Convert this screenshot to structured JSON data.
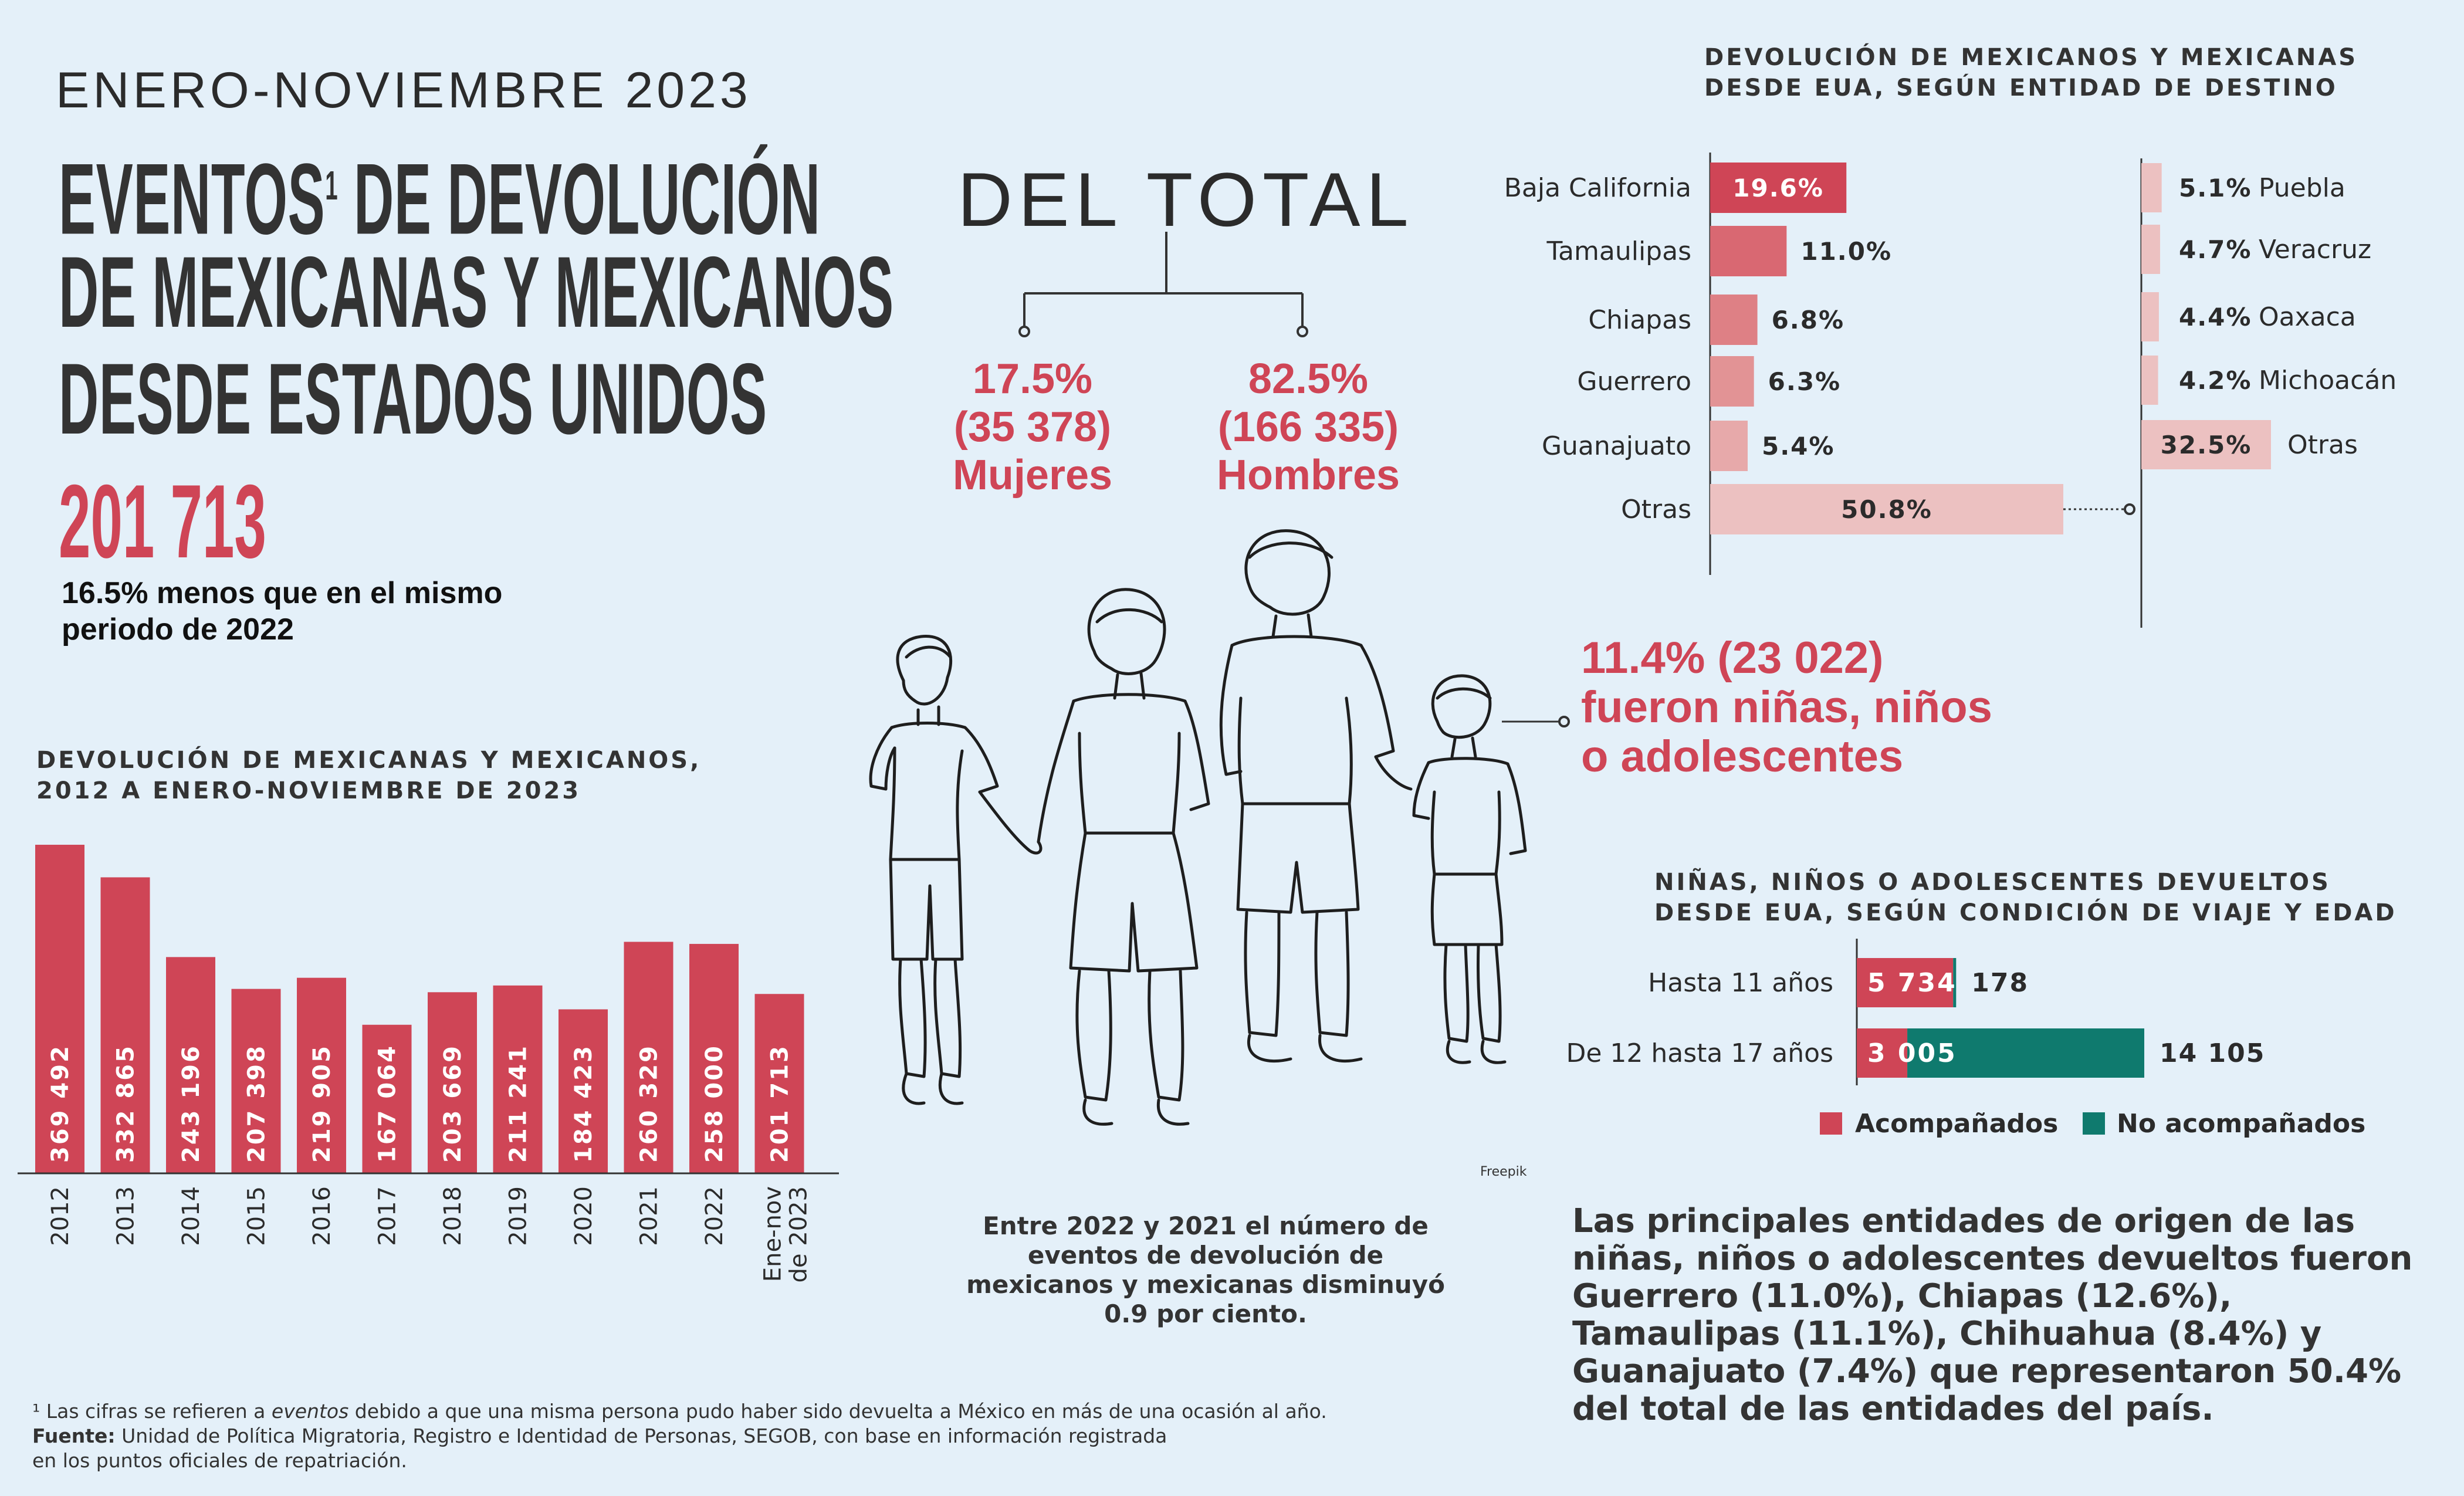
{
  "header": {
    "period": "ENERO-NOVIEMBRE 2023",
    "title_line1": "EVENTOS",
    "title_sup": "1",
    "title_line1_rest": " DE DEVOLUCIÓN",
    "title_line2": "DE MEXICANAS Y MEXICANOS",
    "title_line3": "DESDE ESTADOS UNIDOS",
    "total": "201 713",
    "total_note": "16.5% menos que en el mismo periodo de 2022"
  },
  "gender": {
    "heading": "DEL TOTAL",
    "women_pct": "17.5%",
    "women_count": "(35 378)",
    "women_label": "Mujeres",
    "men_pct": "82.5%",
    "men_count": "(166 335)",
    "men_label": "Hombres"
  },
  "kids": {
    "line1": "11.4% (23 022)",
    "line2": "fueron niñas, niños",
    "line3": "o adolescentes"
  },
  "credit": "Freepik",
  "change_note": {
    "p1": "Entre ",
    "y1": "2022",
    "p2": " y ",
    "y2": "2021",
    "p3": " el número de eventos de devolución de mexicanos y mexicanas disminuyó ",
    "pct": "0.9 por ciento."
  },
  "origin_note": {
    "p1": "Las principales entidades de origen de las niñas, niños o adolescentes devueltos fueron ",
    "s1": "Guerrero (11.0%), Chiapas (12.6%), Tamaulipas (11.1%), Chihuahua (8.4%)",
    "p2": " y ",
    "s2": "Guanajuato (7.4%)",
    "p3": " que representaron 50.4% del total de las entidades del país."
  },
  "footnote": {
    "line1_a": "¹ Las cifras se refieren a ",
    "line1_em": "eventos",
    "line1_b": " debido a que una misma persona pudo haber sido devuelta a México en más de una ocasión al año.",
    "source_label": "Fuente:",
    "source_text": " Unidad de Política Migratoria, Registro e Identidad de Personas, SEGOB, con base en información registrada",
    "line3": "en los puntos oficiales de repatriación."
  },
  "colors": {
    "red": "#cf4556",
    "teal": "#0f7a6e",
    "state_shades": [
      "#cf4556",
      "#d96872",
      "#de8085",
      "#e29395",
      "#e7a9aa",
      "#ecc1c1"
    ],
    "other_shade": "#ecc1c1"
  },
  "chart_data": [
    {
      "type": "bar",
      "title": "DEVOLUCIÓN DE MEXICANAS Y MEXICANOS, 2012 A ENERO-NOVIEMBRE DE 2023",
      "categories": [
        "2012",
        "2013",
        "2014",
        "2015",
        "2016",
        "2017",
        "2018",
        "2019",
        "2020",
        "2021",
        "2022",
        "Ene-nov de 2023"
      ],
      "values": [
        369492,
        332865,
        243196,
        207398,
        219905,
        167064,
        203669,
        211241,
        184423,
        260329,
        258000,
        201713
      ],
      "value_labels": [
        "369 492",
        "332 865",
        "243 196",
        "207 398",
        "219 905",
        "167 064",
        "203 669",
        "211 241",
        "184 423",
        "260 329",
        "258 000",
        "201 713"
      ],
      "ylim": [
        0,
        380000
      ],
      "grid": false
    },
    {
      "type": "bar",
      "orientation": "horizontal",
      "title": "DEVOLUCIÓN DE MEXICANOS Y MEXICANAS DESDE EUA, SEGÚN ENTIDAD DE DESTINO",
      "categories": [
        "Baja California",
        "Tamaulipas",
        "Chiapas",
        "Guerrero",
        "Guanajuato",
        "Otras"
      ],
      "values": [
        19.6,
        11.0,
        6.8,
        6.3,
        5.4,
        50.8
      ],
      "value_labels": [
        "19.6%",
        "11.0%",
        "6.8%",
        "6.3%",
        "5.4%",
        "50.8%"
      ],
      "breakdown_of": "Otras",
      "breakdown": {
        "categories": [
          "Puebla",
          "Veracruz",
          "Oaxaca",
          "Michoacán",
          "Otras"
        ],
        "values": [
          5.1,
          4.7,
          4.4,
          4.2,
          32.5
        ],
        "value_labels": [
          "5.1%",
          "4.7%",
          "4.4%",
          "4.2%",
          "32.5%"
        ]
      }
    },
    {
      "type": "bar",
      "orientation": "horizontal",
      "stacked": true,
      "title": "NIÑAS, NIÑOS O ADOLESCENTES DEVUELTOS DESDE EUA, SEGÚN CONDICIÓN DE VIAJE Y EDAD",
      "categories": [
        "Hasta 11 años",
        "De 12 hasta 17 años"
      ],
      "series": [
        {
          "name": "Acompañados",
          "values": [
            5734,
            3005
          ],
          "labels": [
            "5 734",
            "3 005"
          ]
        },
        {
          "name": "No acompañados",
          "values": [
            178,
            14105
          ],
          "labels": [
            "178",
            "14 105"
          ]
        }
      ],
      "legend": "bottom"
    }
  ]
}
